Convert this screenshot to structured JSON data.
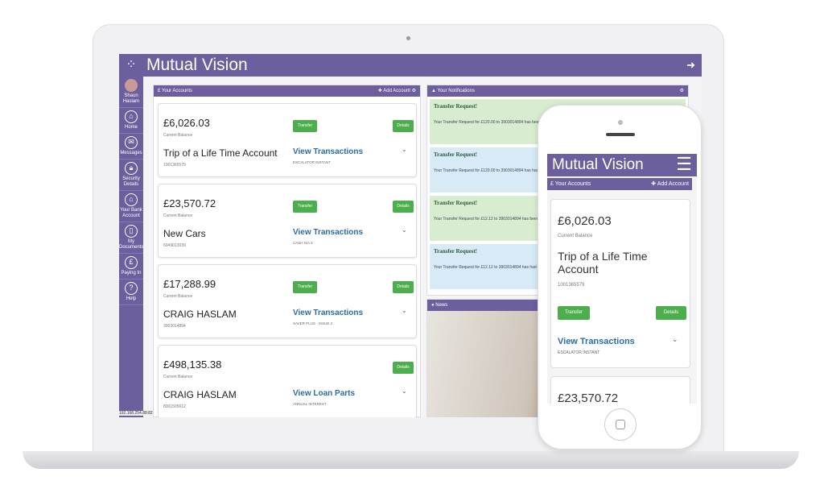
{
  "app": {
    "title": "Mutual Vision",
    "logout_icon": "logout-icon",
    "ip": "192.168.254.88:82 ▾"
  },
  "colors": {
    "brand": "#6d5e9e",
    "button": "#4cae4c",
    "link": "#2b6ca3"
  },
  "sidebar": {
    "user": "Shaun Haslam",
    "items": [
      {
        "label": "Home",
        "icon": "home-icon"
      },
      {
        "label": "Messages",
        "icon": "mail-icon"
      },
      {
        "label": "Security Details",
        "icon": "lock-icon"
      },
      {
        "label": "Your Bank Account",
        "icon": "bank-icon"
      },
      {
        "label": "My Documents",
        "icon": "document-icon"
      },
      {
        "label": "Paying In",
        "icon": "cash-icon"
      },
      {
        "label": "Help",
        "icon": "help-icon"
      }
    ]
  },
  "accounts": {
    "title": "Your Accounts",
    "add": "✚ Add Account",
    "transfer": "Transfer",
    "details": "Details",
    "balance_label": "Current Balance",
    "items": [
      {
        "balance": "£6,026.03",
        "name": "Trip of a Life Time Account",
        "number": "1001365579",
        "link": "View Transactions",
        "product": "ESCALATOR INSTANT"
      },
      {
        "balance": "£23,570.72",
        "name": "New Cars",
        "number": "6949013039",
        "link": "View Transactions",
        "product": "CASH ISA 3"
      },
      {
        "balance": "£17,288.99",
        "name": "CRAIG HASLAM",
        "number": "3903014894",
        "link": "View Transactions",
        "product": "SAVER PLUS - ISSUE 2"
      },
      {
        "balance": "£498,135.38",
        "name": "CRAIG HASLAM",
        "number": "8001505612",
        "link": "View Loan Parts",
        "product": "ANNUAL INTEREST"
      }
    ]
  },
  "notifications": {
    "title": "Your Notifications",
    "items": [
      {
        "title": "Transfer Request!",
        "text": "Your Transfer Request for £120.00 to 3903014894 has been"
      },
      {
        "title": "Transfer Request!",
        "text": "Your Transfer Request for £120.00 to 3903014894 has had"
      },
      {
        "title": "Transfer Request!",
        "text": "Your Transfer Request for £12.12 to 3903014894 has been"
      },
      {
        "title": "Transfer Request!",
        "text": "Your Transfer Request for £12.12 to 3903014894 has had"
      }
    ]
  },
  "news": {
    "title": "News"
  },
  "phone": {
    "title": "Mutual Vision",
    "accounts_title": "Your Accounts",
    "add": "✚ Add Account",
    "balance": "£6,026.03",
    "balance_label": "Current Balance",
    "name": "Trip of a Life Time Account",
    "number": "1001365579",
    "transfer": "Transfer",
    "details": "Details",
    "link": "View Transactions",
    "product": "ESCALATOR INSTANT",
    "next_balance": "£23,570.72"
  }
}
